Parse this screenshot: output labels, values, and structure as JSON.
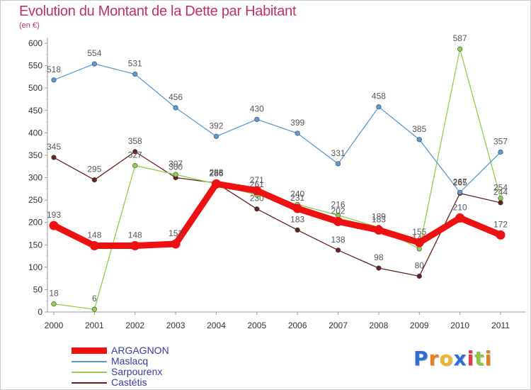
{
  "header": {
    "title": "Evolution du Montant de la Dette par Habitant",
    "subtitle": "(en €)"
  },
  "brand": {
    "logo_letters": [
      "P",
      "r",
      "o",
      "x",
      "i",
      "t",
      "i"
    ],
    "logo_colors": [
      "#2d6fd6",
      "#e8801a",
      "#f0b428",
      "#2d6fd6",
      "#e83a3a",
      "#8dc63f",
      "#e8801a"
    ]
  },
  "chart_data": {
    "type": "line",
    "title": "Evolution du Montant de la Dette par Habitant",
    "subtitle": "(en €)",
    "xlabel": "",
    "ylabel": "",
    "x": [
      "2000",
      "2001",
      "2002",
      "2003",
      "2004",
      "2005",
      "2006",
      "2007",
      "2008",
      "2009",
      "2010",
      "2011"
    ],
    "ylim": [
      0,
      600
    ],
    "yticks": [
      "0",
      "50",
      "100",
      "150",
      "200",
      "250",
      "300",
      "350",
      "400",
      "450",
      "500",
      "550",
      "600"
    ],
    "grid": "none",
    "legend_position": "bottom-left",
    "series": [
      {
        "name": "ARGAGNON",
        "color": "#ee1111",
        "values": [
          193,
          148,
          148,
          152,
          286,
          271,
          231,
          202,
          183,
          155,
          210,
          172
        ]
      },
      {
        "name": "Maslacq",
        "color": "#5b9bd5",
        "values": [
          518,
          554,
          531,
          456,
          392,
          430,
          399,
          331,
          458,
          385,
          267,
          357
        ]
      },
      {
        "name": "Sarpourenx",
        "color": "#8dd04a",
        "values": [
          18,
          6,
          327,
          307,
          286,
          261,
          240,
          216,
          189,
          141,
          587,
          254
        ]
      },
      {
        "name": "Castétis",
        "color": "#6b1e1e",
        "values": [
          345,
          295,
          358,
          300,
          288,
          230,
          183,
          138,
          98,
          80,
          265,
          244
        ]
      }
    ]
  }
}
